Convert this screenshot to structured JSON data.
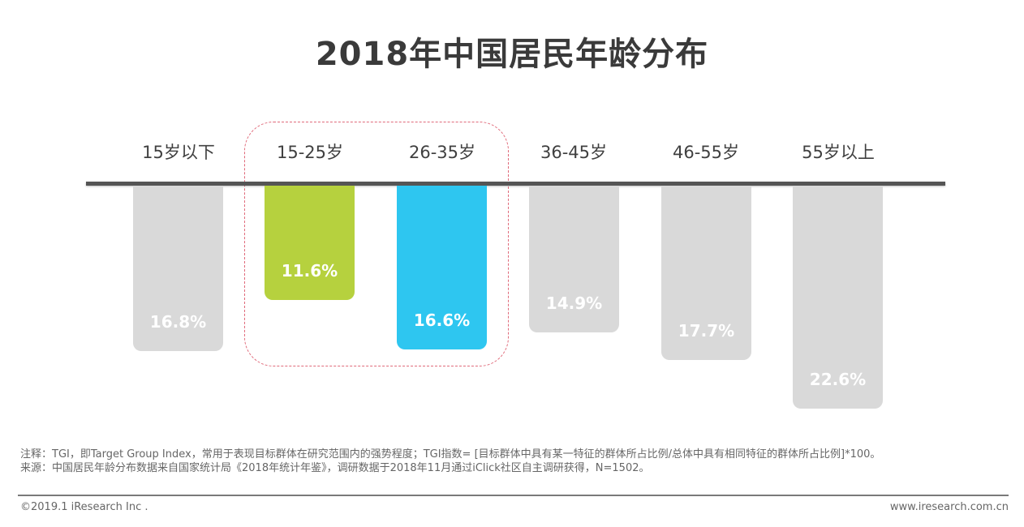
{
  "title": "2018年中国居民年龄分布",
  "chart_data": {
    "type": "bar",
    "title": "2018年中国居民年龄分布",
    "orientation": "vertical-downward",
    "categories": [
      "15岁以下",
      "15-25岁",
      "26-35岁",
      "36-45岁",
      "46-55岁",
      "55岁以上"
    ],
    "values": [
      16.8,
      11.6,
      16.6,
      14.9,
      17.7,
      22.6
    ],
    "value_labels": [
      "16.8%",
      "11.6%",
      "16.6%",
      "14.9%",
      "17.7%",
      "22.6%"
    ],
    "unit": "%",
    "colors": [
      "#D9D9D9",
      "#B6D13E",
      "#2EC6F0",
      "#D9D9D9",
      "#D9D9D9",
      "#D9D9D9"
    ],
    "highlighted_categories": [
      "15-25岁",
      "26-35岁"
    ],
    "xlabel": "",
    "ylabel": "",
    "grid": false,
    "legend": null
  },
  "bars": [
    {
      "label": "15岁以下",
      "value": 16.8,
      "value_label": "16.8%",
      "color": "#D9D9D9"
    },
    {
      "label": "15-25岁",
      "value": 11.6,
      "value_label": "11.6%",
      "color": "#B6D13E"
    },
    {
      "label": "26-35岁",
      "value": 16.6,
      "value_label": "16.6%",
      "color": "#2EC6F0"
    },
    {
      "label": "36-45岁",
      "value": 14.9,
      "value_label": "14.9%",
      "color": "#D9D9D9"
    },
    {
      "label": "46-55岁",
      "value": 17.7,
      "value_label": "17.7%",
      "color": "#D9D9D9"
    },
    {
      "label": "55岁以上",
      "value": 22.6,
      "value_label": "22.6%",
      "color": "#D9D9D9"
    }
  ],
  "notes": {
    "note": "注释：TGI，即Target Group Index，常用于表现目标群体在研究范围内的强势程度；TGI指数= [目标群体中具有某一特征的群体所占比例/总体中具有相同特征的群体所占比例]*100。",
    "source": "来源：中国居民年龄分布数据来自国家统计局《2018年统计年鉴》，调研数据于2018年11月通过iClick社区自主调研获得，N=1502。"
  },
  "footer": {
    "copyright": "©2019.1 iResearch Inc .",
    "site": "www.iresearch.com.cn"
  }
}
